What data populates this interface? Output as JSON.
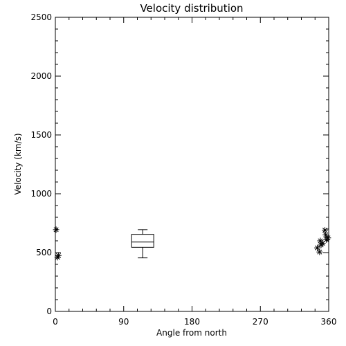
{
  "chart_data": {
    "type": "scatter",
    "title": "Velocity distribution",
    "xlabel": "Angle from north",
    "ylabel": "Velocity (km/s)",
    "xlim": [
      0,
      360
    ],
    "ylim": [
      0,
      2500
    ],
    "xticks": [
      0,
      90,
      180,
      270,
      360
    ],
    "yticks": [
      0,
      500,
      1000,
      1500,
      2000,
      2500
    ],
    "grid": false,
    "points": [
      {
        "x": 1,
        "y": 695
      },
      {
        "x": 3,
        "y": 460
      },
      {
        "x": 4,
        "y": 475
      },
      {
        "x": 345,
        "y": 540
      },
      {
        "x": 348,
        "y": 505
      },
      {
        "x": 349,
        "y": 600
      },
      {
        "x": 350,
        "y": 565
      },
      {
        "x": 352,
        "y": 580
      },
      {
        "x": 355,
        "y": 690
      },
      {
        "x": 356,
        "y": 650
      },
      {
        "x": 357,
        "y": 610
      },
      {
        "x": 359,
        "y": 625
      }
    ],
    "boxplot": {
      "x": 115,
      "whisker_low": 455,
      "q1": 545,
      "median": 590,
      "q3": 655,
      "whisker_high": 695
    }
  }
}
